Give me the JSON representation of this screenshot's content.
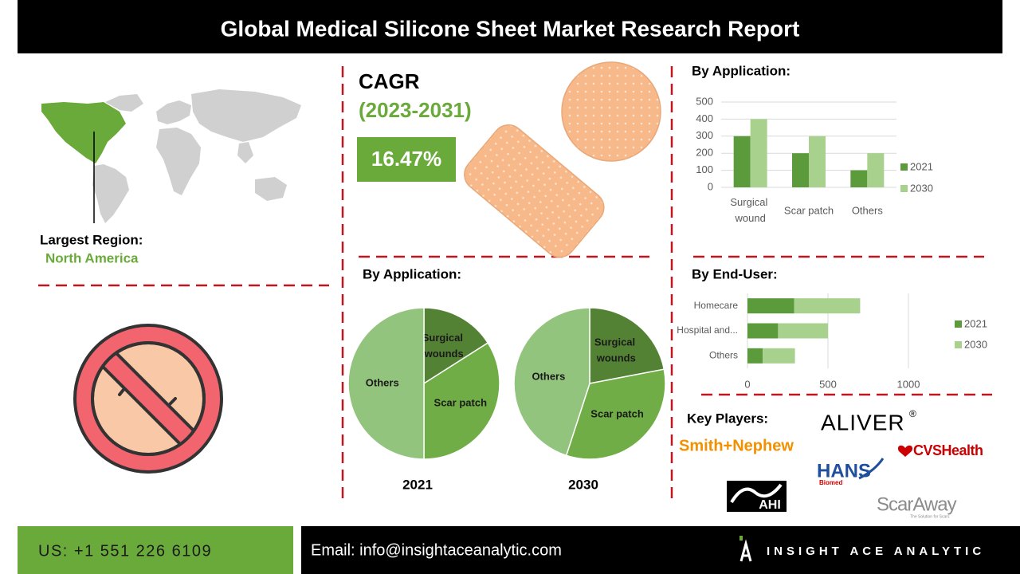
{
  "header": {
    "title": "Global Medical Silicone Sheet Market Research Report"
  },
  "region": {
    "label": "Largest Region:",
    "value": "North America"
  },
  "cagr": {
    "label": "CAGR",
    "period": "(2023-2031)",
    "value": "16.47%"
  },
  "pie_section": {
    "title": "By Application:"
  },
  "key_players": {
    "title": "Key Players:",
    "logos": [
      "Smith+Nephew",
      "ALIVER",
      "®",
      "CVSHealth",
      "HANS",
      "Biomed",
      "AHI",
      "ScarAway",
      "The Solution for Scars"
    ]
  },
  "footer": {
    "phone": "US: +1 551 226 6109",
    "email": "Email: info@insightaceanalytic.com",
    "brand": "INSIGHT ACE ANALYTIC"
  },
  "chart_data": [
    {
      "type": "bar",
      "title": "By Application:",
      "categories": [
        "Surgical wound",
        "Scar patch",
        "Others"
      ],
      "series": [
        {
          "name": "2021",
          "color": "#5b9b3c",
          "values": [
            300,
            200,
            100
          ]
        },
        {
          "name": "2030",
          "color": "#a9d18e",
          "values": [
            400,
            300,
            200
          ]
        }
      ],
      "ylim": [
        0,
        500
      ],
      "yticks": [
        0,
        100,
        200,
        300,
        400,
        500
      ],
      "grid": true,
      "legend": "right"
    },
    {
      "type": "pie",
      "title": "2021",
      "categories": [
        "Surgical wounds",
        "Scar patch",
        "Others"
      ],
      "values": [
        16,
        34,
        50
      ],
      "colors": [
        "#548235",
        "#70ad47",
        "#93c47d"
      ]
    },
    {
      "type": "pie",
      "title": "2030",
      "categories": [
        "Surgical wounds",
        "Scar patch",
        "Others"
      ],
      "values": [
        22,
        33,
        45
      ],
      "colors": [
        "#548235",
        "#70ad47",
        "#93c47d"
      ]
    },
    {
      "type": "hbar",
      "title": "By End-User:",
      "stacked": true,
      "categories": [
        "Homecare",
        "Hospital and...",
        "Others"
      ],
      "series": [
        {
          "name": "2021",
          "color": "#5b9b3c",
          "values": [
            290,
            190,
            95
          ]
        },
        {
          "name": "2030",
          "color": "#a9d18e",
          "values": [
            410,
            310,
            200
          ]
        }
      ],
      "xlim": [
        0,
        1000
      ],
      "xticks": [
        0,
        500,
        1000
      ],
      "grid": true,
      "legend": "right"
    }
  ]
}
